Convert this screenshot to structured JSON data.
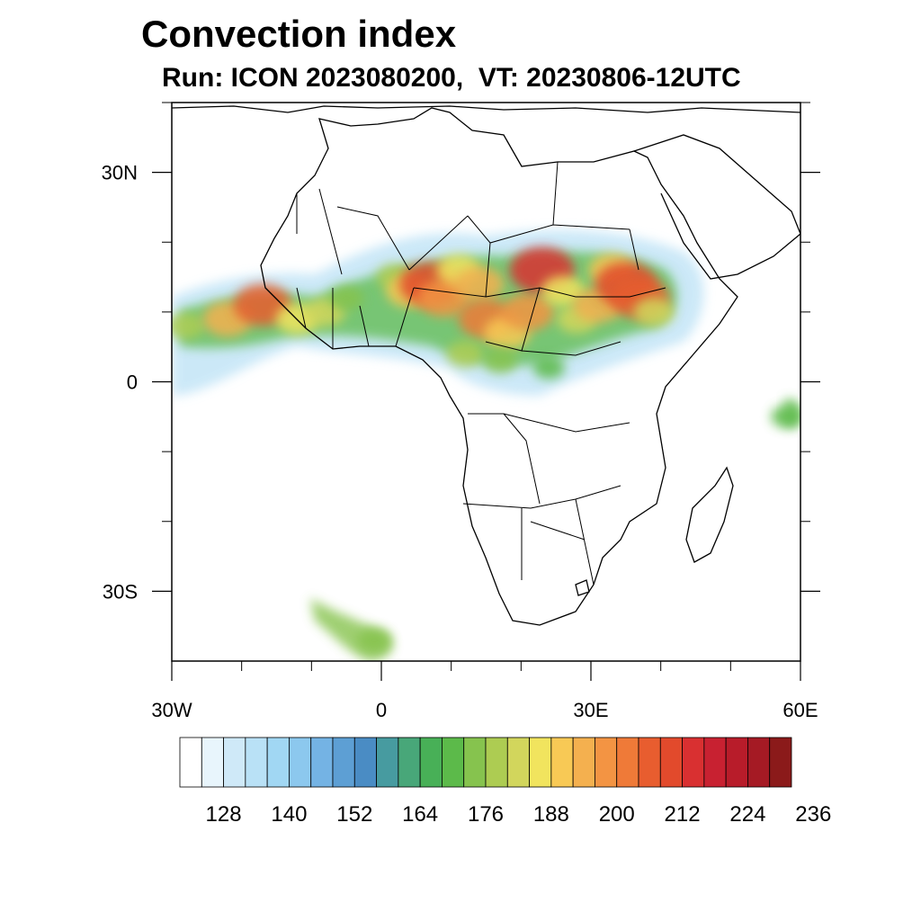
{
  "title": "Convection index",
  "subtitle": "Run: ICON 2023080200,  VT: 20230806-12UTC",
  "map": {
    "lon_range": [
      -30,
      60
    ],
    "lat_range": [
      -40,
      40
    ],
    "lon_ticks": [
      {
        "value": -30,
        "label": "30W"
      },
      {
        "value": 0,
        "label": "0"
      },
      {
        "value": 30,
        "label": "30E"
      },
      {
        "value": 60,
        "label": "60E"
      }
    ],
    "lat_ticks": [
      {
        "value": 30,
        "label": "30N"
      },
      {
        "value": 0,
        "label": "0"
      },
      {
        "value": -30,
        "label": "30S"
      }
    ]
  },
  "colorbar": {
    "colors": [
      "#ffffff",
      "#e8f5fc",
      "#cfe9f8",
      "#b9e1f6",
      "#a1d7f3",
      "#8cc8ee",
      "#74b3e4",
      "#5d9fd4",
      "#4a8cc4",
      "#479ba0",
      "#48a779",
      "#48b057",
      "#5cba4a",
      "#86c34e",
      "#adcc52",
      "#d2d65c",
      "#f1e45e",
      "#f8c955",
      "#f4b04f",
      "#f39443",
      "#ef7a38",
      "#e85d2f",
      "#e24a2c",
      "#d93031",
      "#c82131",
      "#b81c2a",
      "#a51a24",
      "#8b1a1a"
    ],
    "labels": [
      "128",
      "140",
      "152",
      "164",
      "176",
      "188",
      "200",
      "212",
      "224",
      "236"
    ],
    "label_index": [
      1,
      4,
      7,
      10,
      13,
      16,
      19,
      22,
      25,
      28
    ]
  },
  "convection_cells": [
    {
      "lon": -28,
      "lat": 8,
      "level": 14
    },
    {
      "lon": -22,
      "lat": 9,
      "level": 18
    },
    {
      "lon": -17,
      "lat": 11,
      "level": 21
    },
    {
      "lon": -12,
      "lat": 9,
      "level": 16
    },
    {
      "lon": -8,
      "lat": 10,
      "level": 15
    },
    {
      "lon": -5,
      "lat": 12,
      "level": 13
    },
    {
      "lon": 2,
      "lat": 15,
      "level": 14
    },
    {
      "lon": 4,
      "lat": 13,
      "level": 17
    },
    {
      "lon": 7,
      "lat": 14,
      "level": 22
    },
    {
      "lon": 9,
      "lat": 12,
      "level": 19
    },
    {
      "lon": 11,
      "lat": 16,
      "level": 16
    },
    {
      "lon": 14,
      "lat": 14,
      "level": 18
    },
    {
      "lon": 15,
      "lat": 9,
      "level": 20
    },
    {
      "lon": 18,
      "lat": 7,
      "level": 17
    },
    {
      "lon": 21,
      "lat": 10,
      "level": 19
    },
    {
      "lon": 23,
      "lat": 16,
      "level": 23
    },
    {
      "lon": 26,
      "lat": 13,
      "level": 16
    },
    {
      "lon": 28,
      "lat": 9,
      "level": 15
    },
    {
      "lon": 31,
      "lat": 11,
      "level": 18
    },
    {
      "lon": 33,
      "lat": 16,
      "level": 17
    },
    {
      "lon": 35,
      "lat": 14,
      "level": 22
    },
    {
      "lon": 37,
      "lat": 12,
      "level": 21
    },
    {
      "lon": 39,
      "lat": 10,
      "level": 15
    },
    {
      "lon": 12,
      "lat": 4,
      "level": 14
    },
    {
      "lon": 17,
      "lat": 3,
      "level": 13
    },
    {
      "lon": 24,
      "lat": 2,
      "level": 12
    },
    {
      "lon": -1,
      "lat": -37,
      "level": 13
    },
    {
      "lon": 58,
      "lat": -5,
      "level": 12
    }
  ]
}
